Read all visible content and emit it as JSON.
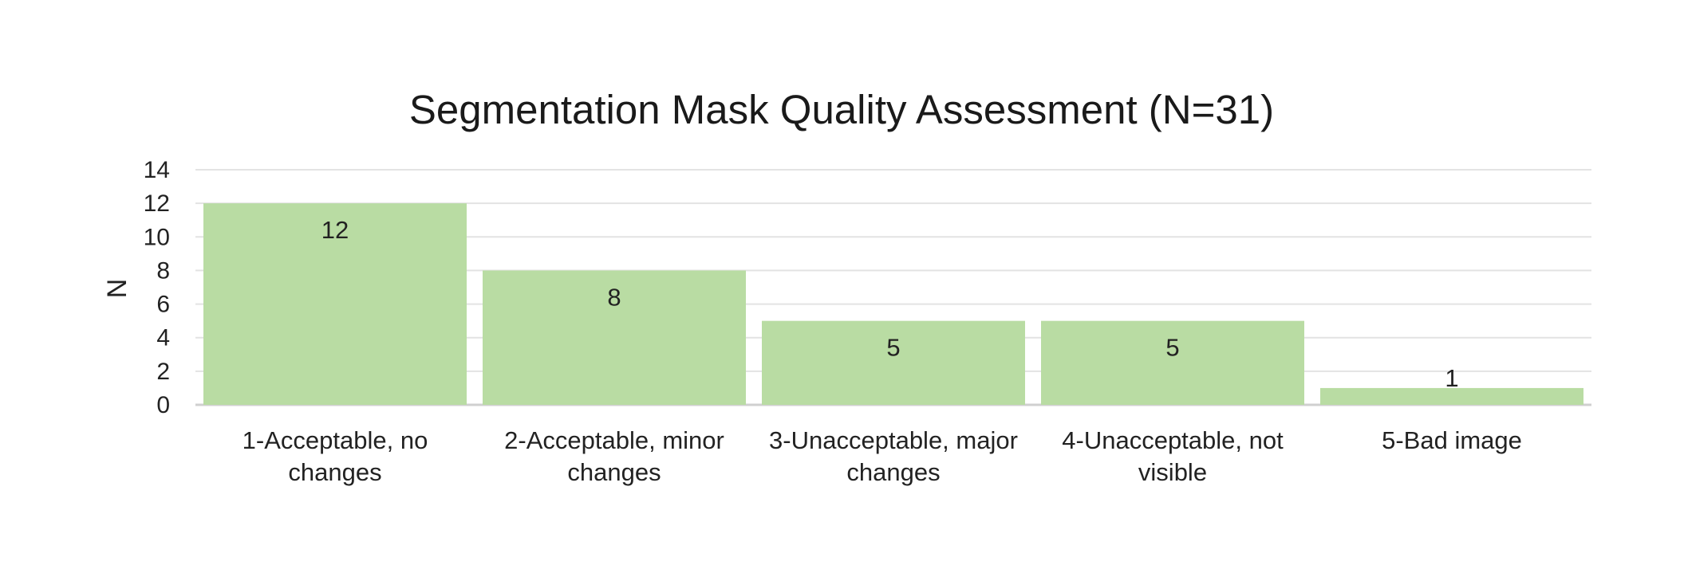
{
  "chart_data": {
    "type": "bar",
    "title": "Segmentation Mask Quality Assessment (N=31)",
    "xlabel": "",
    "ylabel": "N",
    "ylim": [
      0,
      14
    ],
    "yticks": [
      0,
      2,
      4,
      6,
      8,
      10,
      12,
      14
    ],
    "grid": true,
    "legend": "none",
    "categories": [
      "1-Acceptable, no changes",
      "2-Acceptable, minor changes",
      "3-Unacceptable, major changes",
      "4-Unacceptable, not visible",
      "5-Bad image"
    ],
    "category_label_lines": [
      [
        "1-Acceptable, no",
        "changes"
      ],
      [
        "2-Acceptable, minor",
        "changes"
      ],
      [
        "3-Unacceptable, major",
        "changes"
      ],
      [
        "4-Unacceptable, not",
        "visible"
      ],
      [
        "5-Bad image"
      ]
    ],
    "values": [
      12,
      8,
      5,
      5,
      1
    ],
    "data_labels": [
      "12",
      "8",
      "5",
      "5",
      "1"
    ],
    "colors": {
      "bar": "#b9dca3",
      "grid": "#e3e3e3",
      "axis": "#d0d0d0",
      "text": "#222222"
    }
  }
}
